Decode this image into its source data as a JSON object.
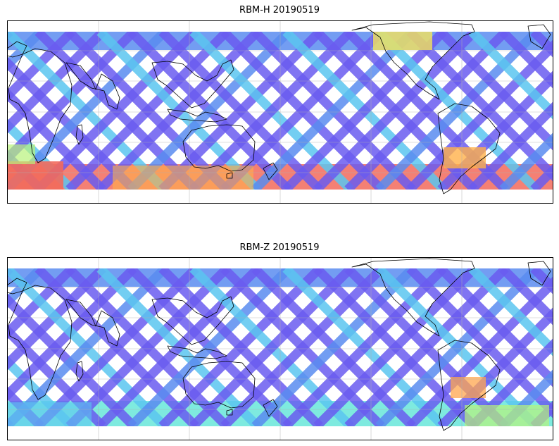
{
  "panels": [
    {
      "title": "RBM-H 20190519",
      "south_band_color": "#f26a5c",
      "south_band_alt_color": "#ffb04a",
      "colorscale": [
        "#6a5cf0",
        "#5a8cf0",
        "#5bc6f0",
        "#67e6d9",
        "#b8f27a",
        "#f5e35a",
        "#ffa64d",
        "#f26a5c"
      ]
    },
    {
      "title": "RBM-Z 20190519",
      "south_band_color": "#67e6d9",
      "south_band_alt_color": "#b8f27a",
      "colorscale": [
        "#6a5cf0",
        "#5a8cf0",
        "#5bc6f0",
        "#67e6d9",
        "#b8f27a",
        "#f5e35a",
        "#ffa64d",
        "#f26a5c"
      ]
    }
  ]
}
